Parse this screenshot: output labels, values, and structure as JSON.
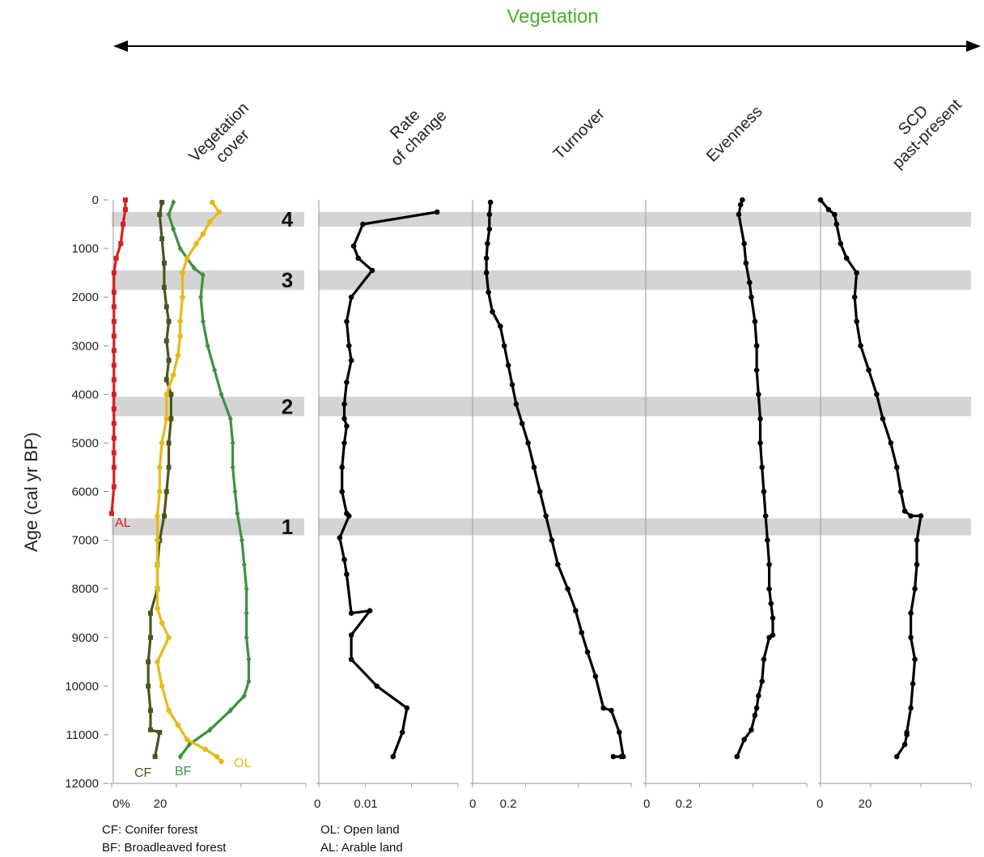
{
  "header": {
    "title": "Vegetation",
    "title_color": "#4caf2e"
  },
  "yaxis": {
    "label": "Age (cal yr BP)",
    "range": [
      0,
      12000
    ],
    "ticks": [
      "0",
      "1000",
      "2000",
      "3000",
      "4000",
      "5000",
      "6000",
      "7000",
      "8000",
      "9000",
      "10000",
      "11000",
      "12000"
    ]
  },
  "bands": [
    {
      "label": "4",
      "from": 250,
      "to": 550
    },
    {
      "label": "3",
      "from": 1450,
      "to": 1850
    },
    {
      "label": "2",
      "from": 4050,
      "to": 4450
    },
    {
      "label": "1",
      "from": 6550,
      "to": 6900
    }
  ],
  "legend": {
    "cf": "CF: Conifer forest",
    "bf": "BF: Broadleaved forest",
    "ol": "OL: Open land",
    "al": "AL: Arable land"
  },
  "colors": {
    "cf": "#4a5520",
    "bf": "#3d9140",
    "ol": "#e8b918",
    "al": "#d42020",
    "line": "#000000",
    "band": "#d4d4d4"
  },
  "chart_data": [
    {
      "type": "line",
      "title": "Vegetation cover",
      "xlabel": "",
      "ylabel": "Age (cal yr BP)",
      "xticks": [
        "0%",
        "20"
      ],
      "xlim": [
        0,
        85
      ],
      "ylim": [
        12000,
        0
      ],
      "series": [
        {
          "name": "AL",
          "color": "#d42020",
          "x": [
            6,
            6,
            5,
            4,
            2,
            1,
            1,
            1,
            1,
            1,
            1,
            1,
            1,
            1,
            1,
            1,
            1,
            1,
            1,
            1,
            0
          ],
          "y": [
            0,
            200,
            500,
            900,
            1200,
            1500,
            1900,
            2200,
            2500,
            2800,
            3100,
            3400,
            3700,
            4000,
            4300,
            4600,
            4900,
            5200,
            5500,
            5900,
            6450
          ]
        },
        {
          "name": "CF",
          "color": "#4a5520",
          "x": [
            22,
            21,
            22,
            23,
            23,
            24,
            25,
            24,
            25,
            24,
            26,
            26,
            25,
            25,
            24,
            23,
            21,
            20,
            20,
            17,
            17,
            16,
            16,
            17,
            17,
            21,
            19
          ],
          "y": [
            50,
            300,
            800,
            1300,
            1800,
            2200,
            2500,
            2900,
            3300,
            3700,
            4000,
            4500,
            5000,
            5500,
            6000,
            6500,
            7000,
            7500,
            8000,
            8500,
            9000,
            9500,
            10000,
            10500,
            10900,
            10950,
            11450
          ]
        },
        {
          "name": "BF",
          "color": "#3d9140",
          "x": [
            27,
            25,
            27,
            30,
            36,
            40,
            39,
            40,
            42,
            45,
            48,
            52,
            53,
            53,
            54,
            55,
            57,
            58,
            59,
            59,
            59,
            60,
            60,
            58,
            52,
            43,
            34,
            30
          ],
          "y": [
            50,
            300,
            600,
            1000,
            1400,
            1550,
            2000,
            2500,
            3000,
            3500,
            4000,
            4500,
            5000,
            5500,
            6000,
            6450,
            7000,
            7500,
            8000,
            8500,
            9000,
            9450,
            9900,
            10200,
            10500,
            10900,
            11200,
            11450
          ]
        },
        {
          "name": "OL",
          "color": "#e8b918",
          "x": [
            44,
            47,
            43,
            40,
            37,
            33,
            31,
            31,
            30,
            30,
            29,
            27,
            24,
            24,
            22,
            21,
            21,
            20,
            20,
            20,
            20,
            20,
            22,
            25,
            20,
            22,
            25,
            29,
            33,
            41,
            46,
            48
          ],
          "y": [
            50,
            250,
            450,
            700,
            900,
            1200,
            1500,
            2000,
            2500,
            2800,
            3200,
            3600,
            4000,
            4500,
            5000,
            5500,
            6000,
            6500,
            7000,
            7500,
            8000,
            8400,
            8700,
            9000,
            9500,
            10000,
            10500,
            10800,
            11100,
            11300,
            11450,
            11550
          ]
        }
      ]
    },
    {
      "type": "line",
      "title": "Rate of change",
      "xticks": [
        "0",
        "0.01"
      ],
      "xlim": [
        0,
        0.03
      ],
      "ylim": [
        12000,
        0
      ],
      "series": [
        {
          "name": "",
          "color": "#000000",
          "x": [
            0.0255,
            0.0095,
            0.0075,
            0.0085,
            0.0115,
            0.007,
            0.006,
            0.0065,
            0.007,
            0.006,
            0.0055,
            0.0055,
            0.006,
            0.0055,
            0.005,
            0.005,
            0.006,
            0.0065,
            0.0045,
            0.0055,
            0.006,
            0.007,
            0.011,
            0.007,
            0.007,
            0.0125,
            0.019,
            0.018,
            0.016
          ],
          "y": [
            250,
            500,
            950,
            1200,
            1450,
            2000,
            2500,
            3000,
            3300,
            3750,
            4200,
            4500,
            4650,
            5000,
            5500,
            6000,
            6450,
            6500,
            6950,
            7400,
            7700,
            8500,
            8450,
            8950,
            9450,
            10000,
            10450,
            10950,
            11450
          ]
        }
      ]
    },
    {
      "type": "line",
      "title": "Turnover",
      "xticks": [
        "0",
        "0.2"
      ],
      "xlim": [
        0,
        0.8
      ],
      "ylim": [
        12000,
        0
      ],
      "series": [
        {
          "name": "",
          "color": "#000000",
          "x": [
            0.09,
            0.085,
            0.085,
            0.075,
            0.07,
            0.07,
            0.08,
            0.1,
            0.14,
            0.16,
            0.18,
            0.2,
            0.22,
            0.25,
            0.28,
            0.31,
            0.34,
            0.37,
            0.4,
            0.43,
            0.48,
            0.52,
            0.55,
            0.58,
            0.62,
            0.66,
            0.7,
            0.74,
            0.76,
            0.75,
            0.71
          ],
          "y": [
            50,
            300,
            600,
            900,
            1200,
            1500,
            1900,
            2300,
            2600,
            3000,
            3400,
            3800,
            4200,
            4600,
            5000,
            5500,
            6000,
            6500,
            7000,
            7500,
            8000,
            8450,
            8900,
            9300,
            9800,
            10450,
            10500,
            10950,
            11450,
            11450,
            11450
          ]
        }
      ]
    },
    {
      "type": "line",
      "title": "Evenness",
      "xticks": [
        "0",
        "0.2"
      ],
      "xlim": [
        0,
        0.9
      ],
      "ylim": [
        12000,
        0
      ],
      "series": [
        {
          "name": "",
          "color": "#000000",
          "x": [
            0.54,
            0.53,
            0.52,
            0.55,
            0.56,
            0.58,
            0.59,
            0.61,
            0.62,
            0.62,
            0.63,
            0.64,
            0.64,
            0.65,
            0.66,
            0.67,
            0.68,
            0.69,
            0.69,
            0.7,
            0.71,
            0.71,
            0.69,
            0.66,
            0.65,
            0.63,
            0.62,
            0.61,
            0.59,
            0.55,
            0.51
          ],
          "y": [
            0,
            100,
            300,
            900,
            1300,
            1700,
            2000,
            2500,
            3000,
            3500,
            4000,
            4500,
            5000,
            5500,
            6000,
            6500,
            7000,
            7500,
            8000,
            8300,
            8600,
            8950,
            9000,
            9450,
            9900,
            10200,
            10450,
            10600,
            10900,
            11100,
            11450
          ]
        }
      ]
    },
    {
      "type": "line",
      "title": "SCD past-present",
      "xticks": [
        "0",
        "20"
      ],
      "xlim": [
        0,
        75
      ],
      "ylim": [
        12000,
        0
      ],
      "series": [
        {
          "name": "",
          "color": "#000000",
          "x": [
            0,
            4,
            7,
            8,
            10,
            13,
            18,
            17,
            18,
            20,
            24,
            28,
            31,
            35,
            38,
            40,
            42,
            45,
            50,
            48,
            48,
            47,
            45,
            45,
            47,
            46,
            45,
            43,
            43,
            42,
            38
          ],
          "y": [
            0,
            200,
            300,
            500,
            900,
            1200,
            1500,
            2000,
            2500,
            3000,
            3500,
            4000,
            4500,
            5000,
            5500,
            6000,
            6400,
            6500,
            6500,
            7000,
            7500,
            8000,
            8500,
            9000,
            9450,
            9950,
            10450,
            10950,
            11000,
            11200,
            11450
          ]
        }
      ]
    }
  ]
}
